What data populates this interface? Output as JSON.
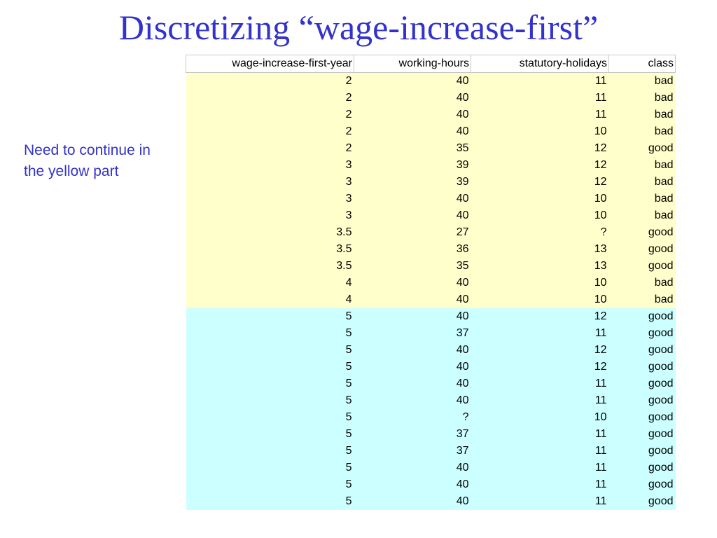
{
  "slide": {
    "title": "Discretizing “wage-increase-first”",
    "note": "Need to continue in the yellow part"
  },
  "colors": {
    "title": "#3333cc",
    "yellow_rows": "#ffffcc",
    "cyan_rows": "#ccffff"
  },
  "table": {
    "headers": [
      "wage-increase-first-year",
      "working-hours",
      "statutory-holidays",
      "class"
    ],
    "rows": [
      {
        "group": "yellow",
        "cells": [
          "2",
          "40",
          "11",
          "bad"
        ]
      },
      {
        "group": "yellow",
        "cells": [
          "2",
          "40",
          "11",
          "bad"
        ]
      },
      {
        "group": "yellow",
        "cells": [
          "2",
          "40",
          "11",
          "bad"
        ]
      },
      {
        "group": "yellow",
        "cells": [
          "2",
          "40",
          "10",
          "bad"
        ]
      },
      {
        "group": "yellow",
        "cells": [
          "2",
          "35",
          "12",
          "good"
        ]
      },
      {
        "group": "yellow",
        "cells": [
          "3",
          "39",
          "12",
          "bad"
        ]
      },
      {
        "group": "yellow",
        "cells": [
          "3",
          "39",
          "12",
          "bad"
        ]
      },
      {
        "group": "yellow",
        "cells": [
          "3",
          "40",
          "10",
          "bad"
        ]
      },
      {
        "group": "yellow",
        "cells": [
          "3",
          "40",
          "10",
          "bad"
        ]
      },
      {
        "group": "yellow",
        "cells": [
          "3.5",
          "27",
          "?",
          "good"
        ]
      },
      {
        "group": "yellow",
        "cells": [
          "3.5",
          "36",
          "13",
          "good"
        ]
      },
      {
        "group": "yellow",
        "cells": [
          "3.5",
          "35",
          "13",
          "good"
        ]
      },
      {
        "group": "yellow",
        "cells": [
          "4",
          "40",
          "10",
          "bad"
        ]
      },
      {
        "group": "yellow",
        "cells": [
          "4",
          "40",
          "10",
          "bad"
        ]
      },
      {
        "group": "cyan",
        "cells": [
          "5",
          "40",
          "12",
          "good"
        ]
      },
      {
        "group": "cyan",
        "cells": [
          "5",
          "37",
          "11",
          "good"
        ]
      },
      {
        "group": "cyan",
        "cells": [
          "5",
          "40",
          "12",
          "good"
        ]
      },
      {
        "group": "cyan",
        "cells": [
          "5",
          "40",
          "12",
          "good"
        ]
      },
      {
        "group": "cyan",
        "cells": [
          "5",
          "40",
          "11",
          "good"
        ]
      },
      {
        "group": "cyan",
        "cells": [
          "5",
          "40",
          "11",
          "good"
        ]
      },
      {
        "group": "cyan",
        "cells": [
          "5",
          "?",
          "10",
          "good"
        ]
      },
      {
        "group": "cyan",
        "cells": [
          "5",
          "37",
          "11",
          "good"
        ]
      },
      {
        "group": "cyan",
        "cells": [
          "5",
          "37",
          "11",
          "good"
        ]
      },
      {
        "group": "cyan",
        "cells": [
          "5",
          "40",
          "11",
          "good"
        ]
      },
      {
        "group": "cyan",
        "cells": [
          "5",
          "40",
          "11",
          "good"
        ]
      },
      {
        "group": "cyan",
        "cells": [
          "5",
          "40",
          "11",
          "good"
        ]
      }
    ]
  }
}
